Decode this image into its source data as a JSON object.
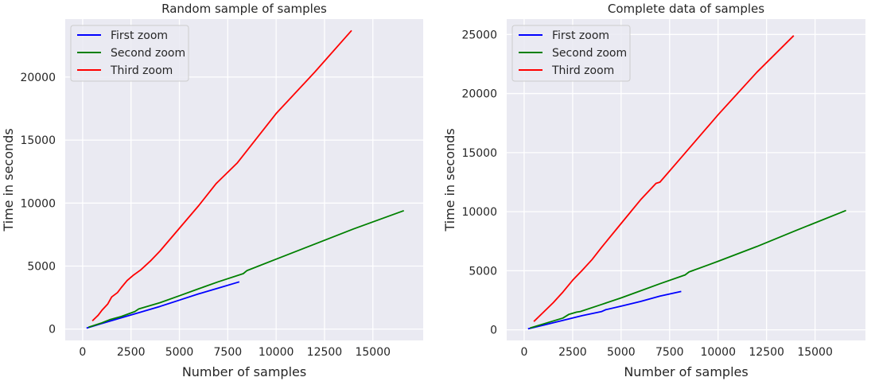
{
  "chart_data": [
    {
      "type": "line",
      "title": "Random sample of samples",
      "xlabel": "Number of samples",
      "ylabel": "Time in seconds",
      "xlim": [
        -900,
        17600
      ],
      "ylim": [
        -900,
        24600
      ],
      "xticks": [
        0,
        2500,
        5000,
        7500,
        10000,
        12500,
        15000
      ],
      "yticks": [
        0,
        5000,
        10000,
        15000,
        20000
      ],
      "grid": true,
      "legend_position": "upper-left",
      "series": [
        {
          "name": "First zoom",
          "color": "#0000ff",
          "x": [
            200,
            1000,
            2000,
            3000,
            4000,
            5000,
            6000,
            7000,
            8100
          ],
          "y": [
            80,
            450,
            900,
            1350,
            1800,
            2300,
            2800,
            3250,
            3750
          ]
        },
        {
          "name": "Second zoom",
          "color": "#008000",
          "x": [
            300,
            1000,
            1400,
            2000,
            2700,
            2900,
            4000,
            5000,
            6000,
            7000,
            8300,
            8500,
            10000,
            12000,
            14000,
            16600
          ],
          "y": [
            150,
            500,
            750,
            1000,
            1400,
            1600,
            2100,
            2650,
            3200,
            3750,
            4400,
            4650,
            5550,
            6750,
            7950,
            9400
          ]
        },
        {
          "name": "Third zoom",
          "color": "#ff0000",
          "x": [
            500,
            800,
            1000,
            1300,
            1500,
            1800,
            2000,
            2300,
            2600,
            3000,
            3500,
            4000,
            5000,
            6000,
            6900,
            7000,
            8000,
            10000,
            12000,
            13900
          ],
          "y": [
            650,
            1100,
            1500,
            2000,
            2550,
            2900,
            3300,
            3850,
            4250,
            4700,
            5400,
            6200,
            8000,
            9800,
            11550,
            11700,
            13200,
            17100,
            20400,
            23700
          ]
        }
      ]
    },
    {
      "type": "line",
      "title": "Complete data of samples",
      "xlabel": "Number of samples",
      "ylabel": "Time in seconds",
      "xlim": [
        -900,
        17600
      ],
      "ylim": [
        -900,
        26300
      ],
      "xticks": [
        0,
        2500,
        5000,
        7500,
        10000,
        12500,
        15000
      ],
      "yticks": [
        0,
        5000,
        10000,
        15000,
        20000,
        25000
      ],
      "grid": true,
      "legend_position": "upper-left",
      "series": [
        {
          "name": "First zoom",
          "color": "#0000ff",
          "x": [
            200,
            1000,
            2000,
            3000,
            4000,
            4200,
            5000,
            6000,
            7000,
            8100
          ],
          "y": [
            80,
            400,
            800,
            1200,
            1550,
            1700,
            2000,
            2400,
            2850,
            3250
          ]
        },
        {
          "name": "Second zoom",
          "color": "#008000",
          "x": [
            300,
            1000,
            2000,
            2300,
            2700,
            2900,
            4000,
            5000,
            6000,
            7000,
            8300,
            8500,
            10000,
            12000,
            14000,
            16600
          ],
          "y": [
            150,
            500,
            1000,
            1300,
            1500,
            1550,
            2150,
            2700,
            3300,
            3900,
            4650,
            4900,
            5800,
            7050,
            8400,
            10100
          ]
        },
        {
          "name": "Third zoom",
          "color": "#ff0000",
          "x": [
            500,
            1000,
            1500,
            2000,
            2500,
            3000,
            3500,
            4000,
            5000,
            6000,
            6800,
            7000,
            8000,
            10000,
            12000,
            13900
          ],
          "y": [
            700,
            1500,
            2300,
            3200,
            4200,
            5050,
            5950,
            7000,
            9000,
            11000,
            12400,
            12500,
            14400,
            18200,
            21800,
            24900
          ]
        }
      ]
    }
  ]
}
